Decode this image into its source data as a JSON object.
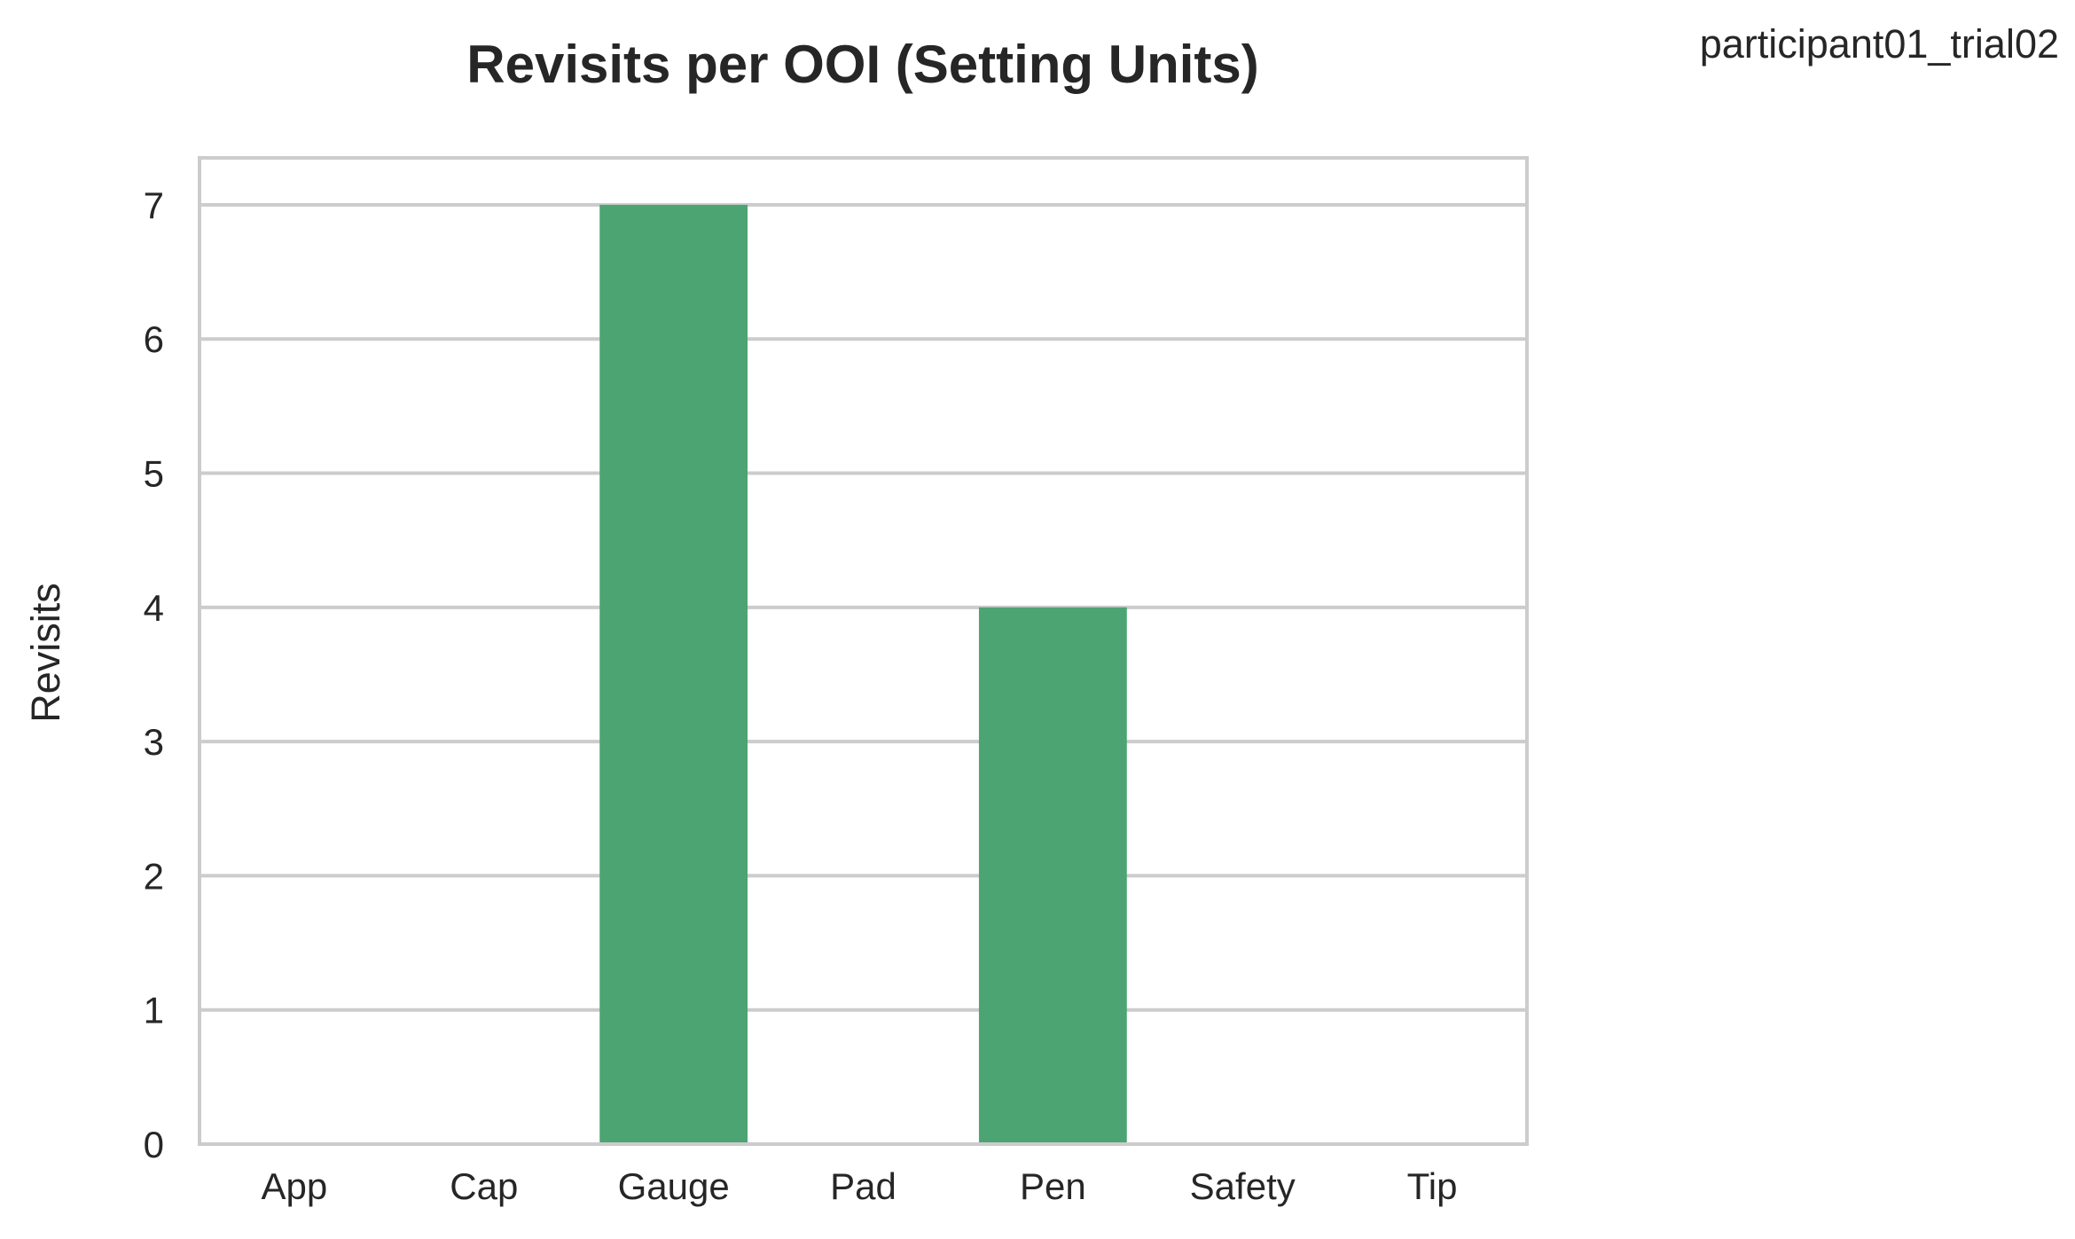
{
  "corner_label": "participant01_trial02",
  "colors": {
    "bar": "#4ca472",
    "grid": "#cccccc",
    "text": "#262626"
  },
  "chart_data": {
    "type": "bar",
    "title": "Revisits per OOI (Setting Units)",
    "xlabel": "",
    "ylabel": "Revisits",
    "categories": [
      "App",
      "Cap",
      "Gauge",
      "Pad",
      "Pen",
      "Safety",
      "Tip"
    ],
    "values": [
      0,
      0,
      7,
      0,
      4,
      0,
      0
    ],
    "ylim": [
      0,
      7.35
    ],
    "yticks": [
      0,
      1,
      2,
      3,
      4,
      5,
      6,
      7
    ],
    "grid": "horizontal",
    "legend": "none"
  }
}
